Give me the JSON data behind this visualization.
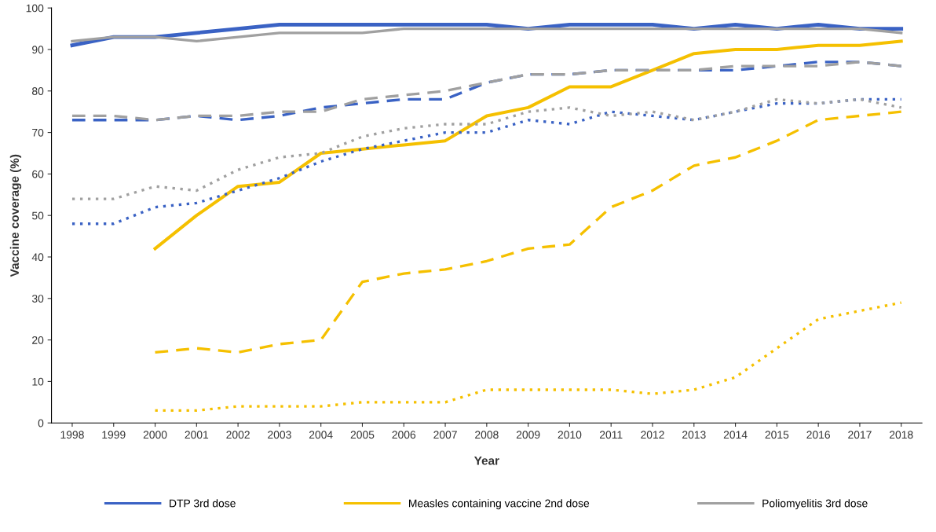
{
  "chart_data": {
    "type": "line",
    "xlabel": "Year",
    "ylabel": "Vaccine coverage (%)",
    "categories": [
      "1998",
      "1999",
      "2000",
      "2001",
      "2002",
      "2003",
      "2004",
      "2005",
      "2006",
      "2007",
      "2008",
      "2009",
      "2010",
      "2011",
      "2012",
      "2013",
      "2014",
      "2015",
      "2016",
      "2017",
      "2018"
    ],
    "ylim": [
      0,
      100
    ],
    "yticks": [
      0,
      10,
      20,
      30,
      40,
      50,
      60,
      70,
      80,
      90,
      100
    ],
    "grid": false,
    "legend": "bottom",
    "marker": "none",
    "series": [
      {
        "name": "DTP 3rd dose",
        "color": "#3a62c4",
        "line_style": "solid",
        "values": [
          91,
          93,
          93,
          94,
          95,
          96,
          96,
          96,
          96,
          96,
          96,
          95,
          96,
          96,
          96,
          95,
          96,
          95,
          96,
          95,
          95
        ]
      },
      {
        "name": "Measles containing vaccine 2nd dose",
        "color": "#f5c000",
        "line_style": "solid",
        "values": [
          null,
          null,
          42,
          50,
          57,
          58,
          65,
          66,
          67,
          68,
          74,
          76,
          81,
          81,
          85,
          89,
          90,
          90,
          91,
          91,
          92
        ]
      },
      {
        "name": "Poliomyelitis 3rd dose",
        "color": "#a0a0a0",
        "line_style": "solid",
        "values": [
          92,
          93,
          93,
          92,
          93,
          94,
          94,
          94,
          95,
          95,
          95,
          95,
          95,
          95,
          95,
          95,
          95,
          95,
          95,
          95,
          94
        ]
      },
      {
        "color": "#3a62c4",
        "line_style": "dashed",
        "values": [
          73,
          73,
          73,
          74,
          73,
          74,
          76,
          77,
          78,
          78,
          82,
          84,
          84,
          85,
          85,
          85,
          85,
          86,
          87,
          87,
          86
        ]
      },
      {
        "color": "#f5c000",
        "line_style": "dashed",
        "values": [
          null,
          null,
          17,
          18,
          17,
          19,
          20,
          34,
          36,
          37,
          39,
          42,
          43,
          52,
          56,
          62,
          64,
          68,
          73,
          74,
          75
        ]
      },
      {
        "color": "#a0a0a0",
        "line_style": "dashed",
        "values": [
          74,
          74,
          73,
          74,
          74,
          75,
          75,
          78,
          79,
          80,
          82,
          84,
          84,
          85,
          85,
          85,
          86,
          86,
          86,
          87,
          86
        ]
      },
      {
        "color": "#3a62c4",
        "line_style": "dotted",
        "values": [
          48,
          48,
          52,
          53,
          56,
          59,
          63,
          66,
          68,
          70,
          70,
          73,
          72,
          75,
          74,
          73,
          75,
          77,
          77,
          78,
          78
        ]
      },
      {
        "color": "#f5c000",
        "line_style": "dotted",
        "values": [
          null,
          null,
          3,
          3,
          4,
          4,
          4,
          5,
          5,
          5,
          8,
          8,
          8,
          8,
          7,
          8,
          11,
          18,
          25,
          27,
          29
        ]
      },
      {
        "color": "#a0a0a0",
        "line_style": "dotted",
        "values": [
          54,
          54,
          57,
          56,
          61,
          64,
          65,
          69,
          71,
          72,
          72,
          75,
          76,
          74,
          75,
          73,
          75,
          78,
          77,
          78,
          76
        ]
      }
    ]
  }
}
